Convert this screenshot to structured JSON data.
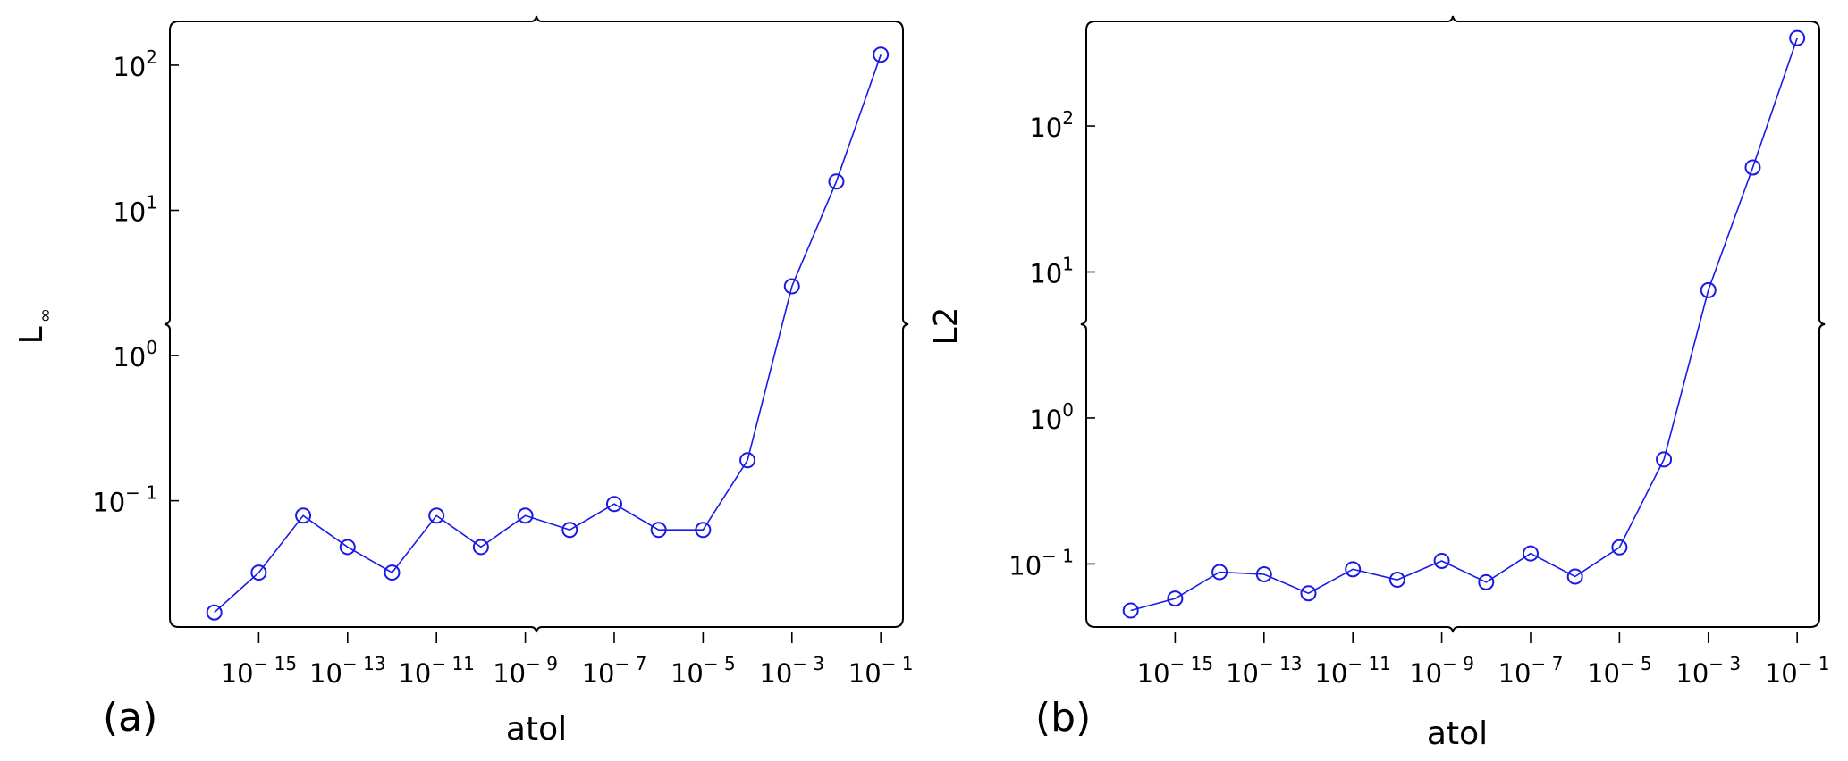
{
  "chart_data": [
    {
      "type": "line",
      "panel_label": "(a)",
      "xlabel": "atol",
      "ylabel": "L",
      "ylabel_sub": "∞",
      "x_scale": "log",
      "y_scale": "log",
      "xlim": [
        1e-17,
        0.316
      ],
      "ylim": [
        0.0135,
        200
      ],
      "x_ticks": [
        {
          "value": 1e-15,
          "base": "10",
          "exp": "− 15"
        },
        {
          "value": 1e-13,
          "base": "10",
          "exp": "− 13"
        },
        {
          "value": 1e-11,
          "base": "10",
          "exp": "− 11"
        },
        {
          "value": 1e-09,
          "base": "10",
          "exp": "− 9"
        },
        {
          "value": 1e-07,
          "base": "10",
          "exp": "− 7"
        },
        {
          "value": 1e-05,
          "base": "10",
          "exp": "− 5"
        },
        {
          "value": 0.001,
          "base": "10",
          "exp": "− 3"
        },
        {
          "value": 0.1,
          "base": "10",
          "exp": "− 1"
        }
      ],
      "y_ticks": [
        {
          "value": 0.1,
          "base": "10",
          "exp": "− 1"
        },
        {
          "value": 1,
          "base": "10",
          "exp": "0"
        },
        {
          "value": 10,
          "base": "10",
          "exp": "1"
        },
        {
          "value": 100,
          "base": "10",
          "exp": "2"
        }
      ],
      "grid": false,
      "legend": "none",
      "color": "#1a1ae6",
      "x": [
        1e-16,
        1e-15,
        1e-14,
        1e-13,
        1e-12,
        1e-11,
        1e-10,
        1e-09,
        1e-08,
        1e-07,
        1e-06,
        1e-05,
        0.0001,
        0.001,
        0.01,
        0.1
      ],
      "y": [
        0.017,
        0.032,
        0.079,
        0.048,
        0.032,
        0.079,
        0.048,
        0.079,
        0.063,
        0.095,
        0.063,
        0.063,
        0.19,
        3.0,
        15.8,
        118
      ]
    },
    {
      "type": "line",
      "panel_label": "(b)",
      "xlabel": "atol",
      "ylabel": "L2",
      "ylabel_sub": "",
      "x_scale": "log",
      "y_scale": "log",
      "xlim": [
        1e-17,
        0.316
      ],
      "ylim": [
        0.037,
        520
      ],
      "x_ticks": [
        {
          "value": 1e-15,
          "base": "10",
          "exp": "− 15"
        },
        {
          "value": 1e-13,
          "base": "10",
          "exp": "− 13"
        },
        {
          "value": 1e-11,
          "base": "10",
          "exp": "− 11"
        },
        {
          "value": 1e-09,
          "base": "10",
          "exp": "− 9"
        },
        {
          "value": 1e-07,
          "base": "10",
          "exp": "− 7"
        },
        {
          "value": 1e-05,
          "base": "10",
          "exp": "− 5"
        },
        {
          "value": 0.001,
          "base": "10",
          "exp": "− 3"
        },
        {
          "value": 0.1,
          "base": "10",
          "exp": "− 1"
        }
      ],
      "y_ticks": [
        {
          "value": 0.1,
          "base": "10",
          "exp": "− 1"
        },
        {
          "value": 1,
          "base": "10",
          "exp": "0"
        },
        {
          "value": 10,
          "base": "10",
          "exp": "1"
        },
        {
          "value": 100,
          "base": "10",
          "exp": "2"
        }
      ],
      "grid": false,
      "legend": "none",
      "color": "#1a1ae6",
      "x": [
        1e-16,
        1e-15,
        1e-14,
        1e-13,
        1e-12,
        1e-11,
        1e-10,
        1e-09,
        1e-08,
        1e-07,
        1e-06,
        1e-05,
        0.0001,
        0.001,
        0.01,
        0.1
      ],
      "y": [
        0.048,
        0.058,
        0.088,
        0.085,
        0.063,
        0.092,
        0.078,
        0.105,
        0.075,
        0.118,
        0.082,
        0.13,
        0.52,
        7.5,
        52,
        400
      ]
    }
  ]
}
